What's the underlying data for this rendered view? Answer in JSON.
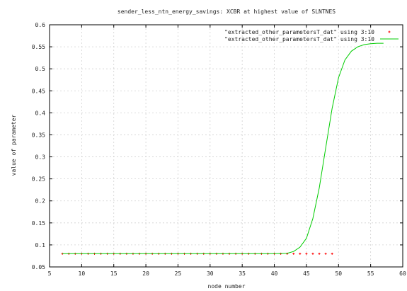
{
  "chart_data": {
    "type": "scatter",
    "title": "sender_less_ntn_energy_savings: XCBR at highest value of SLNTNES",
    "xlabel": "node number",
    "ylabel": "value of parameter",
    "xlim": [
      5,
      60
    ],
    "ylim": [
      0.05,
      0.6
    ],
    "x_ticks": [
      "5",
      "10",
      "15",
      "20",
      "25",
      "30",
      "35",
      "40",
      "45",
      "50",
      "55",
      "60"
    ],
    "y_ticks": [
      "0.05",
      "0.1",
      "0.15",
      "0.2",
      "0.25",
      "0.3",
      "0.35",
      "0.4",
      "0.45",
      "0.5",
      "0.55",
      "0.6"
    ],
    "grid": true,
    "legend_position": "top-right",
    "series": [
      {
        "name": "\"extracted_other_parametersT_dat\" using 3:10",
        "style": "points",
        "color": "#ff0000",
        "x": [
          7,
          8,
          9,
          10,
          11,
          12,
          13,
          14,
          15,
          16,
          17,
          18,
          19,
          20,
          21,
          22,
          23,
          24,
          25,
          26,
          27,
          28,
          29,
          30,
          31,
          32,
          33,
          34,
          35,
          36,
          37,
          38,
          39,
          40,
          41,
          42,
          43,
          44,
          45,
          46,
          47,
          48,
          49
        ],
        "y": [
          0.08,
          0.08,
          0.08,
          0.08,
          0.08,
          0.08,
          0.08,
          0.08,
          0.08,
          0.08,
          0.08,
          0.08,
          0.08,
          0.08,
          0.08,
          0.08,
          0.08,
          0.08,
          0.08,
          0.08,
          0.08,
          0.08,
          0.08,
          0.08,
          0.08,
          0.08,
          0.08,
          0.08,
          0.08,
          0.08,
          0.08,
          0.08,
          0.08,
          0.08,
          0.08,
          0.08,
          0.08,
          0.08,
          0.08,
          0.08,
          0.08,
          0.08,
          0.08
        ]
      },
      {
        "name": "\"extracted_other_parametersT_dat\" using 3:10",
        "style": "line",
        "color": "#00cc00",
        "x": [
          7,
          10,
          15,
          20,
          25,
          30,
          35,
          40,
          42,
          43,
          44,
          45,
          46,
          47,
          48,
          49,
          50,
          51,
          52,
          53,
          54,
          55,
          56,
          57
        ],
        "y": [
          0.08,
          0.08,
          0.08,
          0.08,
          0.08,
          0.08,
          0.08,
          0.08,
          0.081,
          0.085,
          0.095,
          0.115,
          0.16,
          0.23,
          0.32,
          0.41,
          0.48,
          0.52,
          0.54,
          0.55,
          0.555,
          0.557,
          0.558,
          0.558
        ]
      }
    ]
  }
}
